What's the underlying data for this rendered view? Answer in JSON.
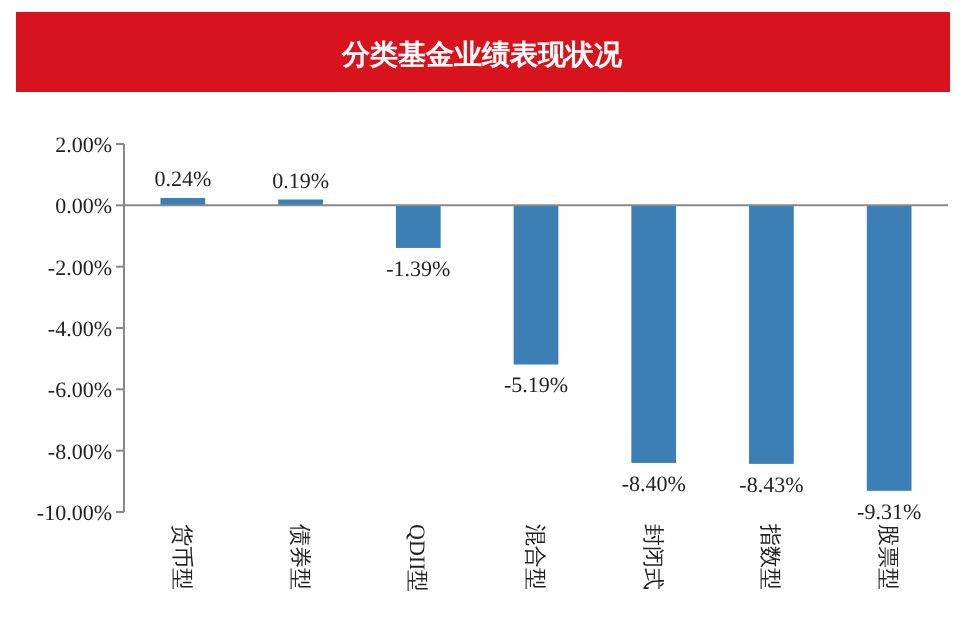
{
  "chart_data": {
    "type": "bar",
    "title": "分类基金业绩表现状况",
    "categories": [
      "货币型",
      "债券型",
      "QDII型",
      "混合型",
      "封闭式",
      "指数型",
      "股票型"
    ],
    "values": [
      0.24,
      0.19,
      -1.39,
      -5.19,
      -8.4,
      -8.43,
      -9.31
    ],
    "value_labels": [
      "0.24%",
      "0.19%",
      "-1.39%",
      "-5.19%",
      "-8.40%",
      "-8.43%",
      "-9.31%"
    ],
    "color": "#3c7fb5",
    "ylim": [
      -10,
      2
    ],
    "yticks": [
      {
        "value": 2,
        "label": "2.00%"
      },
      {
        "value": 0,
        "label": "0.00%"
      },
      {
        "value": -2,
        "label": "-2.00%"
      },
      {
        "value": -4,
        "label": "-4.00%"
      },
      {
        "value": -6,
        "label": "-6.00%"
      },
      {
        "value": -8,
        "label": "-8.00%"
      },
      {
        "value": -10,
        "label": "-10.00%"
      }
    ]
  }
}
